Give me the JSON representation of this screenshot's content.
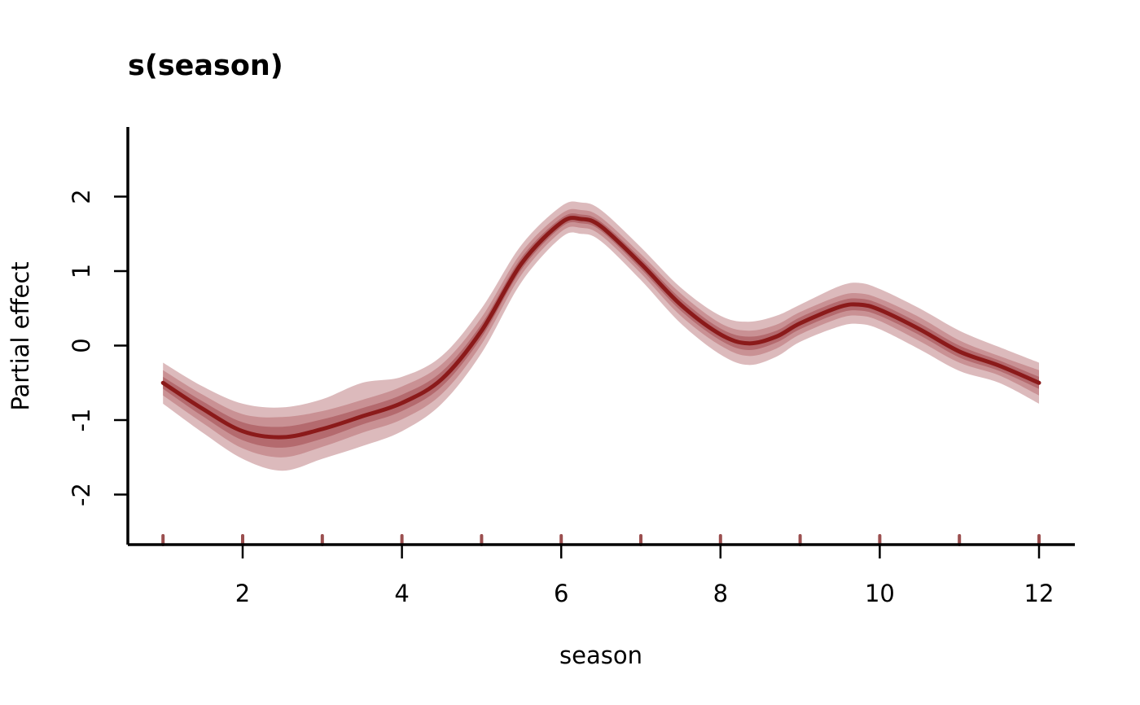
{
  "chart_data": {
    "type": "line",
    "title": "s(season)",
    "xlabel": "season",
    "ylabel": "Partial effect",
    "xlim": [
      0.6,
      12.45
    ],
    "ylim": [
      -2.7,
      2.9
    ],
    "x_ticks": [
      2,
      4,
      6,
      8,
      10,
      12
    ],
    "y_ticks": [
      -2,
      -1,
      0,
      1,
      2
    ],
    "rug": [
      1,
      2,
      3,
      4,
      5,
      6,
      7,
      8,
      9,
      10,
      11,
      12
    ],
    "grid": false,
    "colors": {
      "line": "#8b1a1a",
      "band_outer": "#dcbabc",
      "band_mid": "#c99194",
      "band_inner": "#b46a6e",
      "rug": "#9b4f4f"
    },
    "series": [
      {
        "x": [
          1.0,
          1.5,
          2.0,
          2.5,
          3.0,
          3.5,
          4.0,
          4.5,
          5.0,
          5.5,
          6.0,
          6.25,
          6.5,
          7.0,
          7.5,
          8.0,
          8.35,
          8.7,
          9.0,
          9.5,
          9.75,
          10.0,
          10.5,
          11.0,
          11.5,
          12.0
        ],
        "y": [
          -0.5,
          -0.85,
          -1.15,
          -1.23,
          -1.12,
          -0.95,
          -0.77,
          -0.45,
          0.2,
          1.1,
          1.65,
          1.7,
          1.6,
          1.1,
          0.55,
          0.15,
          0.03,
          0.12,
          0.3,
          0.52,
          0.55,
          0.48,
          0.22,
          -0.08,
          -0.27,
          -0.5
        ],
        "outer_lower": [
          -0.78,
          -1.17,
          -1.52,
          -1.68,
          -1.52,
          -1.35,
          -1.15,
          -0.78,
          -0.1,
          0.85,
          1.45,
          1.5,
          1.4,
          0.88,
          0.3,
          -0.12,
          -0.26,
          -0.15,
          0.05,
          0.26,
          0.29,
          0.22,
          -0.05,
          -0.34,
          -0.5,
          -0.78
        ],
        "outer_upper": [
          -0.23,
          -0.55,
          -0.78,
          -0.83,
          -0.72,
          -0.5,
          -0.42,
          -0.14,
          0.5,
          1.35,
          1.87,
          1.92,
          1.82,
          1.32,
          0.78,
          0.4,
          0.32,
          0.4,
          0.55,
          0.8,
          0.84,
          0.76,
          0.5,
          0.2,
          -0.02,
          -0.23
        ],
        "mid_lower": [
          -0.67,
          -1.04,
          -1.38,
          -1.5,
          -1.36,
          -1.17,
          -0.99,
          -0.65,
          0.02,
          0.95,
          1.53,
          1.58,
          1.48,
          0.97,
          0.4,
          0.0,
          -0.14,
          -0.04,
          0.15,
          0.37,
          0.4,
          0.33,
          0.06,
          -0.23,
          -0.4,
          -0.67
        ],
        "mid_upper": [
          -0.33,
          -0.66,
          -0.92,
          -0.96,
          -0.88,
          -0.73,
          -0.55,
          -0.25,
          0.38,
          1.25,
          1.77,
          1.82,
          1.72,
          1.23,
          0.7,
          0.3,
          0.2,
          0.28,
          0.45,
          0.67,
          0.7,
          0.63,
          0.38,
          0.07,
          -0.14,
          -0.33
        ],
        "inner_lower": [
          -0.58,
          -0.95,
          -1.27,
          -1.37,
          -1.25,
          -1.06,
          -0.88,
          -0.55,
          0.11,
          1.02,
          1.59,
          1.64,
          1.54,
          1.03,
          0.47,
          0.07,
          -0.06,
          0.04,
          0.22,
          0.44,
          0.47,
          0.4,
          0.14,
          -0.16,
          -0.34,
          -0.58
        ],
        "inner_upper": [
          -0.42,
          -0.75,
          -1.03,
          -1.09,
          -0.99,
          -0.84,
          -0.66,
          -0.35,
          0.29,
          1.18,
          1.71,
          1.76,
          1.66,
          1.17,
          0.63,
          0.23,
          0.12,
          0.2,
          0.38,
          0.6,
          0.63,
          0.56,
          0.3,
          0.0,
          -0.2,
          -0.42
        ]
      }
    ]
  }
}
